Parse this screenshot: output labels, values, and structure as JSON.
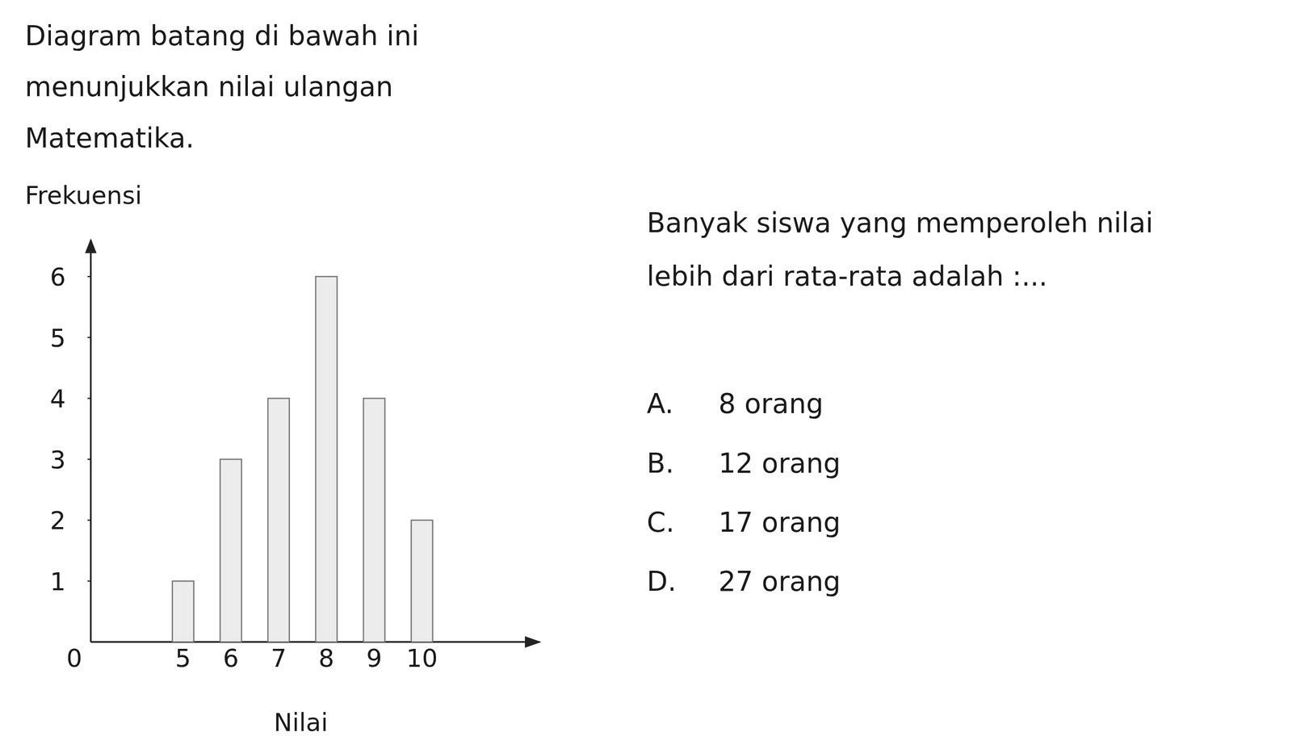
{
  "intro": [
    "Diagram batang di bawah ini",
    "menunjukkan nilai ulangan",
    "Matematika."
  ],
  "chart_data": {
    "type": "bar",
    "x_label": "Nilai",
    "y_label": "Frekuensi",
    "categories": [
      "5",
      "6",
      "7",
      "8",
      "9",
      "10"
    ],
    "values": [
      1,
      3,
      4,
      6,
      4,
      2
    ],
    "color": "#ececec",
    "ylim": [
      0,
      6.6
    ],
    "yticks": [
      0,
      1,
      2,
      3,
      4,
      5,
      6
    ],
    "grid": false
  },
  "question": {
    "lines": [
      "Banyak siswa yang memperoleh nilai",
      "lebih dari rata-rata adalah :..."
    ],
    "options": [
      {
        "letter": "A.",
        "text": "8 orang"
      },
      {
        "letter": "B.",
        "text": "12 orang"
      },
      {
        "letter": "C.",
        "text": "17 orang"
      },
      {
        "letter": "D.",
        "text": "27 orang"
      }
    ]
  }
}
